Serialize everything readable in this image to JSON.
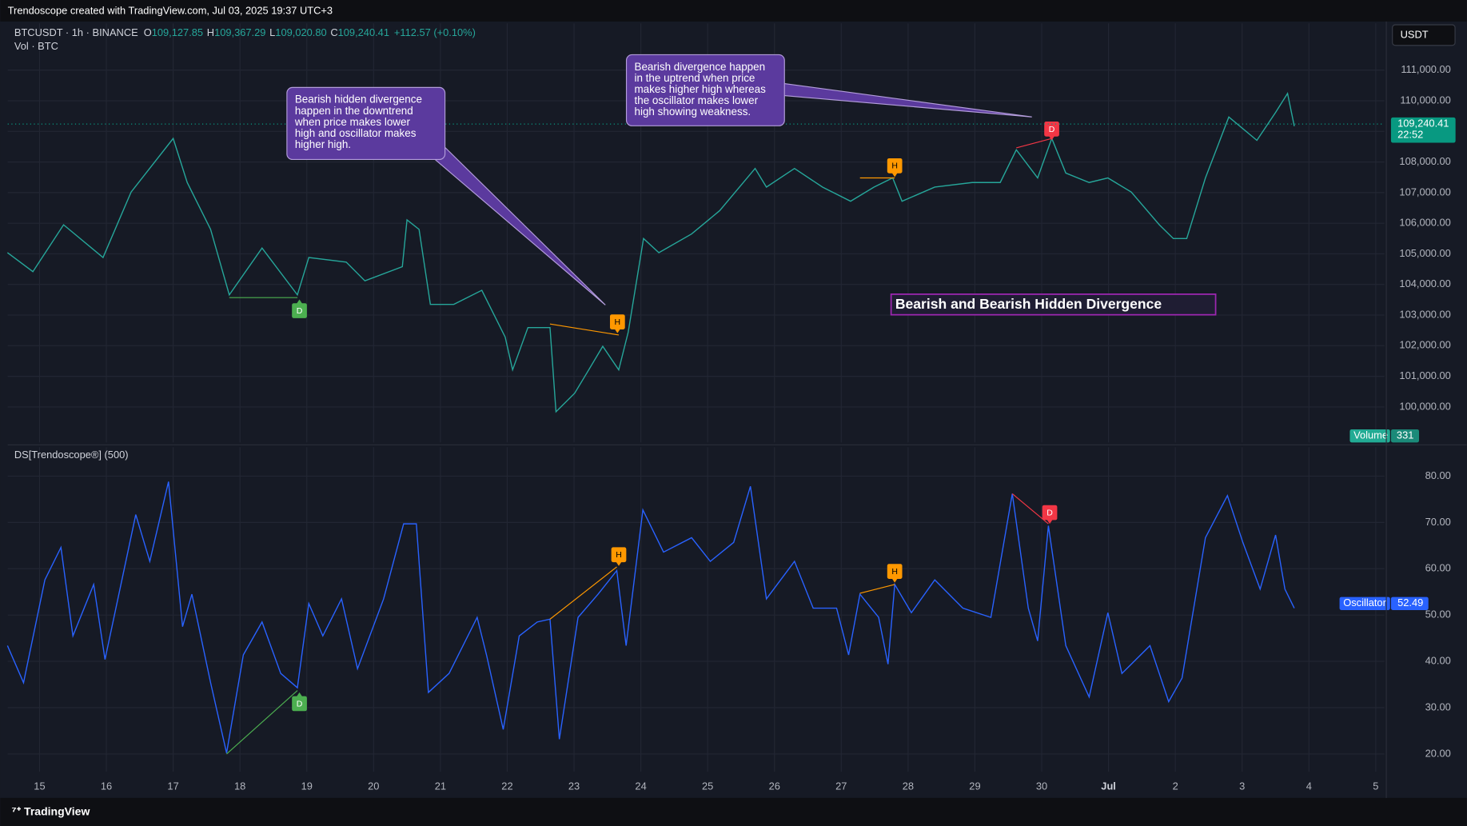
{
  "header": {
    "credit": "Trendoscope created with TradingView.com, Jul 03, 2025 19:37 UTC+3",
    "symbol": "BTCUSDT · 1h · BINANCE",
    "ohlc": [
      {
        "key": "O",
        "value": "109,127.85"
      },
      {
        "key": "H",
        "value": "109,367.29"
      },
      {
        "key": "L",
        "value": "109,020.80"
      },
      {
        "key": "C",
        "value": "109,240.41"
      }
    ],
    "change": "+112.57 (+0.10%)",
    "volume_legend": "Vol · BTC",
    "currency": "USDT"
  },
  "footer": {
    "logo": "TradingView"
  },
  "x_axis": {
    "xlim": [
      -0.476,
      20.13
    ],
    "xticks": [
      {
        "value": 0,
        "label": "15"
      },
      {
        "value": 1,
        "label": "16"
      },
      {
        "value": 2,
        "label": "17"
      },
      {
        "value": 3,
        "label": "18"
      },
      {
        "value": 4,
        "label": "19"
      },
      {
        "value": 5,
        "label": "20"
      },
      {
        "value": 6,
        "label": "21"
      },
      {
        "value": 7,
        "label": "22"
      },
      {
        "value": 8,
        "label": "23"
      },
      {
        "value": 9,
        "label": "24"
      },
      {
        "value": 10,
        "label": "25"
      },
      {
        "value": 11,
        "label": "26"
      },
      {
        "value": 12,
        "label": "27"
      },
      {
        "value": 13,
        "label": "28"
      },
      {
        "value": 14,
        "label": "29"
      },
      {
        "value": 15,
        "label": "30"
      },
      {
        "value": 16,
        "label": "Jul"
      },
      {
        "value": 17,
        "label": "2"
      },
      {
        "value": 18,
        "label": "3"
      },
      {
        "value": 19,
        "label": "4"
      },
      {
        "value": 20,
        "label": "5"
      }
    ]
  },
  "callouts": [
    {
      "lines": [
        "Bearish hidden divergence",
        "happen in the downtrend",
        "when price makes lower",
        "high and oscillator makes",
        "higher high."
      ]
    },
    {
      "lines": [
        "Bearish divergence happen",
        "in the uptrend when price",
        "makes higher high whereas",
        "the oscillator makes lower",
        "high showing weakness."
      ]
    }
  ],
  "banner": "Bearish and Bearish Hidden Divergence",
  "chart_data": [
    {
      "type": "line",
      "color": "#26a69a",
      "grid": true,
      "ylim": [
        98839,
        112528
      ],
      "yticks": [
        {
          "value": 100000,
          "label": "100,000.00"
        },
        {
          "value": 101000,
          "label": "101,000.00"
        },
        {
          "value": 102000,
          "label": "102,000.00"
        },
        {
          "value": 103000,
          "label": "103,000.00"
        },
        {
          "value": 104000,
          "label": "104,000.00"
        },
        {
          "value": 105000,
          "label": "105,000.00"
        },
        {
          "value": 106000,
          "label": "106,000.00"
        },
        {
          "value": 107000,
          "label": "107,000.00"
        },
        {
          "value": 108000,
          "label": "108,000.00"
        },
        {
          "value": 109000,
          "label": "109,000.00"
        },
        {
          "value": 110000,
          "label": "110,000.00"
        },
        {
          "value": 111000,
          "label": "111,000.00"
        }
      ],
      "x": [
        -0.48,
        -0.1,
        0.36,
        0.95,
        1.37,
        2.0,
        2.21,
        2.56,
        2.84,
        3.33,
        3.86,
        4.03,
        4.59,
        4.87,
        5.43,
        5.5,
        5.68,
        5.85,
        6.2,
        6.62,
        6.97,
        7.08,
        7.31,
        7.64,
        7.73,
        8.01,
        8.22,
        8.43,
        8.67,
        8.81,
        9.04,
        9.27,
        9.76,
        10.18,
        10.71,
        10.88,
        11.3,
        11.72,
        12.14,
        12.49,
        12.77,
        12.91,
        13.4,
        13.96,
        14.38,
        14.62,
        14.94,
        15.15,
        15.36,
        15.71,
        15.99,
        16.34,
        16.76,
        16.97,
        17.17,
        17.45,
        17.8,
        18.22,
        18.5,
        18.68,
        18.78
      ],
      "values": [
        105040,
        104420,
        105950,
        104880,
        107020,
        108770,
        107330,
        105800,
        103660,
        105190,
        103660,
        104880,
        104730,
        104120,
        104580,
        106110,
        105800,
        103350,
        103350,
        103810,
        102280,
        101210,
        102590,
        102590,
        99840,
        100450,
        101210,
        101980,
        101210,
        102440,
        105500,
        105040,
        105650,
        106410,
        107790,
        107180,
        107790,
        107180,
        106720,
        107180,
        107480,
        106720,
        107180,
        107330,
        107330,
        108400,
        107480,
        108770,
        107640,
        107330,
        107480,
        107020,
        105950,
        105500,
        105500,
        107480,
        109470,
        108710,
        109620,
        110240,
        109170
      ],
      "last_price": {
        "value": 109240.41,
        "label": "109,240.41"
      },
      "countdown": "22:52",
      "volume_tag": {
        "name": "Volume",
        "value": 331
      },
      "divergences": [
        {
          "color": "#4caf50",
          "x": [
            2.84,
            3.86
          ],
          "y": [
            103570,
            103570
          ],
          "marker": {
            "label": "D",
            "x": 3.89,
            "y": 103510,
            "position": "below"
          }
        },
        {
          "color": "#ff9800",
          "x": [
            7.64,
            8.67
          ],
          "y": [
            102710,
            102350
          ],
          "marker": {
            "label": "H",
            "x": 8.65,
            "y": 102410,
            "position": "above"
          }
        },
        {
          "color": "#ff9800",
          "x": [
            12.28,
            12.8
          ],
          "y": [
            107480,
            107480
          ],
          "marker": {
            "label": "H",
            "x": 12.8,
            "y": 107510,
            "position": "above"
          }
        },
        {
          "color": "#f23645",
          "x": [
            14.62,
            15.15
          ],
          "y": [
            108460,
            108770
          ],
          "marker": {
            "label": "D",
            "x": 15.15,
            "y": 108710,
            "position": "above"
          }
        }
      ]
    },
    {
      "type": "line",
      "title": "DS[Trendoscope®] (500)",
      "grid": true,
      "ylim": [
        16.16,
        86.26
      ],
      "yticks": [
        {
          "value": 20,
          "label": "20.00"
        },
        {
          "value": 30,
          "label": "30.00"
        },
        {
          "value": 40,
          "label": "40.00"
        },
        {
          "value": 50,
          "label": "50.00"
        },
        {
          "value": 60,
          "label": "60.00"
        },
        {
          "value": 70,
          "label": "70.00"
        },
        {
          "value": 80,
          "label": "80.00"
        }
      ],
      "series": [
        {
          "name": "Oscillator",
          "color": "#2962ff",
          "x": [
            -0.48,
            -0.24,
            0.08,
            0.32,
            0.5,
            0.81,
            0.98,
            1.44,
            1.65,
            1.93,
            2.14,
            2.28,
            2.56,
            2.8,
            3.05,
            3.33,
            3.61,
            3.86,
            4.03,
            4.24,
            4.52,
            4.76,
            5.15,
            5.45,
            5.64,
            5.82,
            6.13,
            6.55,
            6.69,
            6.94,
            7.18,
            7.45,
            7.64,
            7.78,
            8.06,
            8.36,
            8.64,
            8.78,
            9.03,
            9.34,
            9.76,
            10.04,
            10.39,
            10.64,
            10.88,
            11.3,
            11.58,
            11.93,
            12.11,
            12.28,
            12.56,
            12.7,
            12.8,
            13.05,
            13.4,
            13.82,
            14.24,
            14.56,
            14.8,
            14.94,
            15.1,
            15.36,
            15.71,
            15.99,
            16.2,
            16.62,
            16.9,
            17.1,
            17.45,
            17.78,
            18.01,
            18.27,
            18.5,
            18.64,
            18.78
          ],
          "values": [
            43.4,
            35.4,
            57.6,
            64.6,
            45.5,
            56.6,
            40.4,
            71.7,
            61.6,
            78.8,
            47.5,
            54.5,
            35.4,
            20.2,
            41.4,
            48.5,
            37.4,
            34.3,
            52.5,
            45.5,
            53.5,
            38.4,
            53.5,
            69.7,
            69.7,
            33.3,
            37.4,
            49.5,
            41.4,
            25.3,
            45.5,
            48.5,
            49.1,
            23.2,
            49.5,
            54.5,
            59.6,
            43.4,
            72.7,
            63.6,
            66.7,
            61.6,
            65.7,
            77.8,
            53.5,
            61.6,
            51.5,
            51.5,
            41.4,
            54.5,
            49.5,
            39.4,
            56.6,
            50.5,
            57.6,
            51.5,
            49.5,
            76.2,
            51.5,
            44.4,
            69.3,
            43.4,
            32.3,
            50.5,
            37.4,
            43.4,
            31.3,
            36.4,
            66.7,
            75.8,
            65.7,
            55.6,
            67.3,
            55.6,
            51.5
          ]
        }
      ],
      "last_value": {
        "value": 52.49,
        "label": "52.49"
      },
      "divergences": [
        {
          "color": "#4caf50",
          "x": [
            2.8,
            3.86
          ],
          "y": [
            20.0,
            33.7
          ],
          "marker": {
            "label": "D",
            "x": 3.89,
            "y": 33.3,
            "position": "below"
          }
        },
        {
          "color": "#ff9800",
          "x": [
            7.64,
            8.64
          ],
          "y": [
            49.1,
            60.4
          ],
          "marker": {
            "label": "H",
            "x": 8.67,
            "y": 60.6,
            "position": "above"
          }
        },
        {
          "color": "#ff9800",
          "x": [
            12.28,
            12.8
          ],
          "y": [
            54.7,
            56.6
          ],
          "marker": {
            "label": "H",
            "x": 12.8,
            "y": 57.0,
            "position": "above"
          }
        },
        {
          "color": "#f23645",
          "x": [
            14.56,
            15.1
          ],
          "y": [
            76.2,
            69.7
          ],
          "marker": {
            "label": "D",
            "x": 15.12,
            "y": 69.7,
            "position": "above"
          }
        }
      ]
    }
  ]
}
